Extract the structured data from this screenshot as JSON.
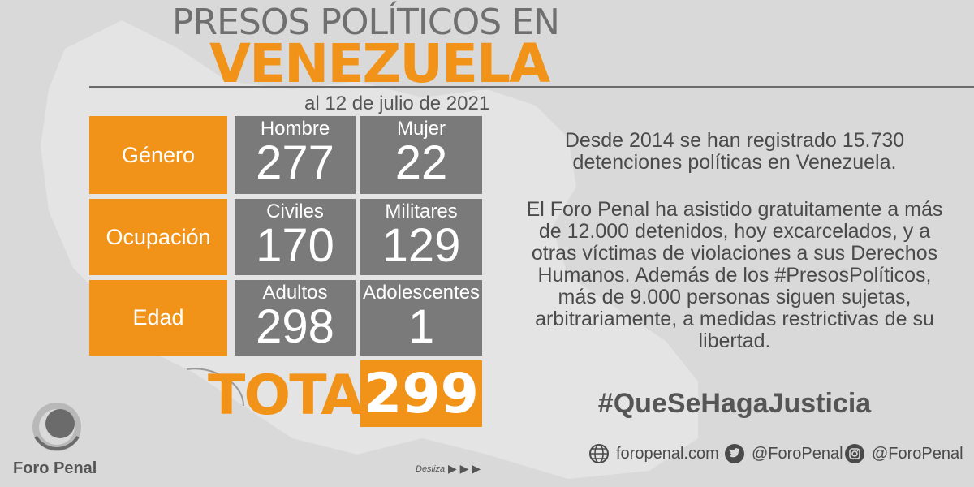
{
  "header": {
    "title_line1": "PRESOS POLÍTICOS EN",
    "title_line2": "VENEZUELA",
    "date": "al 12 de julio de 2021"
  },
  "table": {
    "rows": [
      {
        "category": "Género",
        "cells": [
          {
            "label": "Hombre",
            "value": "277"
          },
          {
            "label": "Mujer",
            "value": "22"
          }
        ]
      },
      {
        "category": "Ocupación",
        "cells": [
          {
            "label": "Civiles",
            "value": "170"
          },
          {
            "label": "Militares",
            "value": "129"
          }
        ]
      },
      {
        "category": "Edad",
        "cells": [
          {
            "label": "Adultos",
            "value": "298"
          },
          {
            "label": "Adolescentes",
            "value": "1"
          }
        ]
      }
    ],
    "total_label": "TOTAL",
    "total_value": "299"
  },
  "text": {
    "paragraph1": "Desde 2014 se han registrado 15.730 detenciones políticas en Venezuela.",
    "paragraph2": "El Foro Penal ha asistido gratuitamente a más de 12.000 detenidos, hoy excarcelados, y a otras víctimas de violaciones a sus Derechos Humanos. Además de los #PresosPolíticos, más de 9.000 personas siguen sujetas, arbitrariamente, a medidas restrictivas de su libertad.",
    "hashtag": "#QueSeHagaJusticia"
  },
  "footer": {
    "website": "foropenal.com",
    "twitter": "@ForoPenal",
    "instagram": "@ForoPenal",
    "logo_text": "Foro Penal",
    "swipe_label": "Desliza",
    "swipe_arrows": "▶ ▶ ▶"
  },
  "colors": {
    "accent": "#f29319",
    "cell": "#7a7a7a",
    "background": "#d9d9d9"
  }
}
